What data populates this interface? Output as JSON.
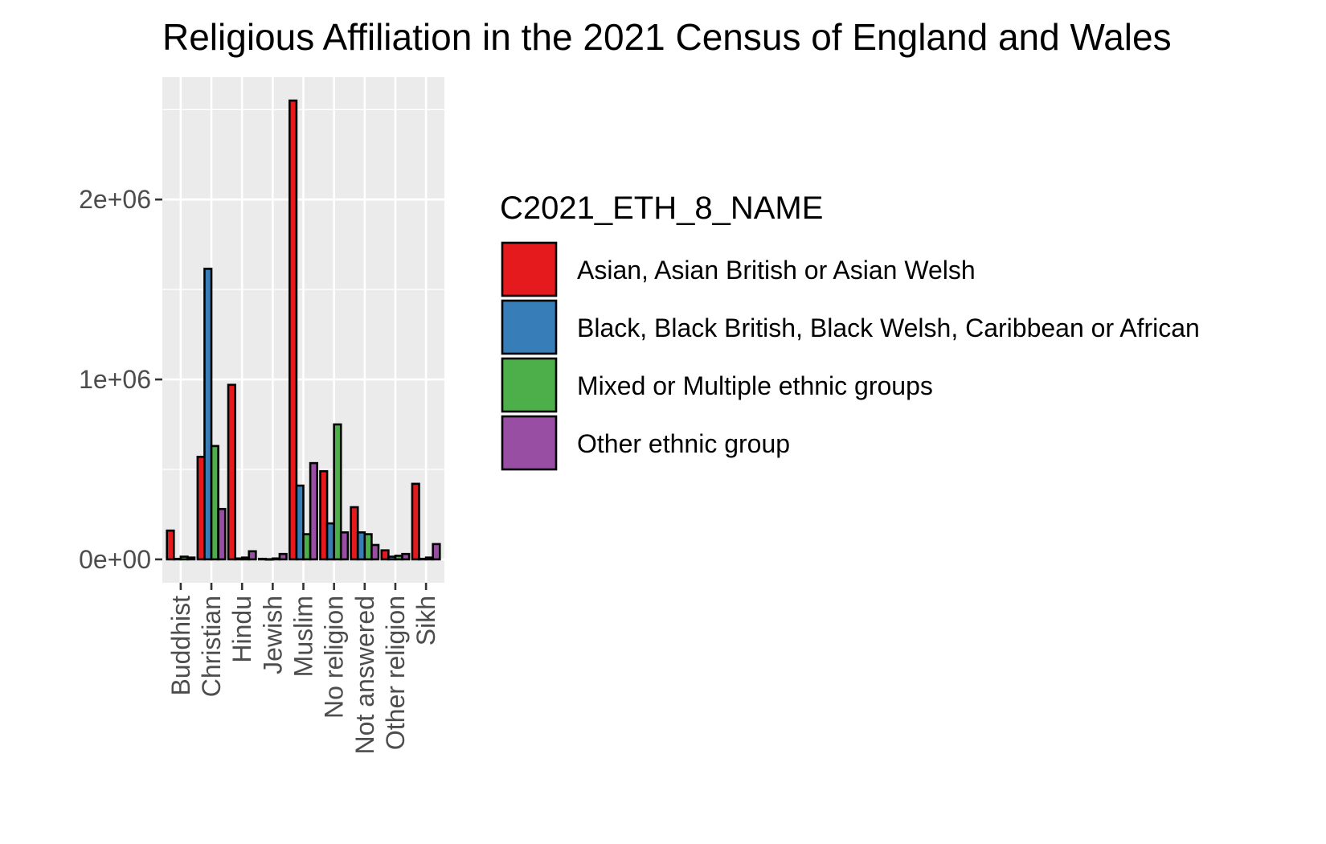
{
  "chart_data": {
    "type": "bar",
    "title": "Religious Affiliation in the 2021 Census of England and Wales",
    "xlabel": "",
    "ylabel": "",
    "ylim": [
      -130000,
      2680000
    ],
    "yticks": [
      0,
      1000000,
      2000000
    ],
    "ytick_labels": [
      "0e+00",
      "1e+06",
      "2e+06"
    ],
    "categories": [
      "Buddhist",
      "Christian",
      "Hindu",
      "Jewish",
      "Muslim",
      "No religion",
      "Not answered",
      "Other religion",
      "Sikh"
    ],
    "legend_title": "C2021_ETH_8_NAME",
    "legend_position": "right",
    "grid": true,
    "series": [
      {
        "name": "Asian, Asian British or Asian Welsh",
        "color": "#E41A1C",
        "values": [
          160000,
          570000,
          970000,
          3000,
          2550000,
          490000,
          290000,
          50000,
          420000
        ]
      },
      {
        "name": "Black, Black British, Black Welsh, Caribbean or African",
        "color": "#377EB8",
        "values": [
          3000,
          1615000,
          5000,
          1000,
          410000,
          200000,
          150000,
          15000,
          3000
        ]
      },
      {
        "name": "Mixed or Multiple ethnic groups",
        "color": "#4DAF4A",
        "values": [
          15000,
          630000,
          10000,
          5000,
          140000,
          750000,
          140000,
          20000,
          10000
        ]
      },
      {
        "name": "Other ethnic group",
        "color": "#984EA3",
        "values": [
          10000,
          280000,
          45000,
          30000,
          535000,
          150000,
          80000,
          30000,
          85000
        ]
      }
    ]
  }
}
